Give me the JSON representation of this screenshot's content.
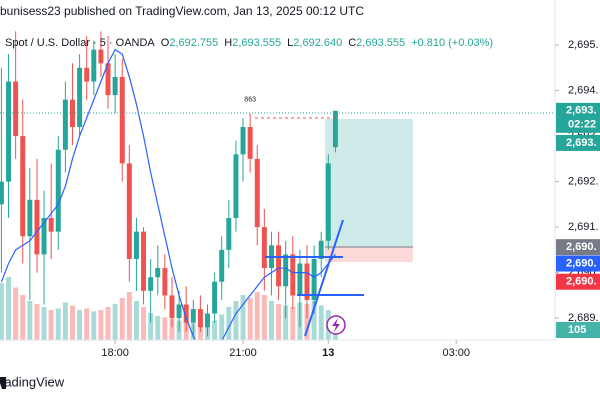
{
  "chart_data": {
    "type": "candlestick",
    "title": "bunisess23 published on TradingView.com, Jan 13, 2025 00:12 UTC",
    "subtitle": "Spot / U.S. Dollar · 5 · OANDA",
    "legend": [
      {
        "label": "O",
        "value": "2,692.755"
      },
      {
        "label": "H",
        "value": "2,693.555"
      },
      {
        "label": "L",
        "value": "2,692.640"
      },
      {
        "label": "C",
        "value": "2,693.555"
      }
    ],
    "change": "+0.810 (+0.03%)",
    "up_color": "#26a69a",
    "down_color": "#ef5350",
    "ma_color": "#2962ff",
    "x": [
      0,
      1,
      2,
      3,
      4,
      5,
      6,
      7,
      8,
      9,
      10,
      11,
      12,
      13,
      14,
      15,
      16,
      17,
      18,
      19,
      20,
      21,
      22,
      23,
      24,
      25,
      26,
      27,
      28,
      29,
      30,
      31,
      32,
      33,
      34,
      35,
      36,
      37,
      38,
      39,
      40,
      41,
      42,
      43,
      44,
      45,
      46,
      47
    ],
    "open": [
      2691.5,
      2692.0,
      2694.2,
      2693.0,
      2690.8,
      2691.6,
      2690.4,
      2691.2,
      2690.9,
      2692.7,
      2693.8,
      2693.2,
      2694.5,
      2694.2,
      2694.9,
      2694.6,
      2693.9,
      2694.3,
      2692.4,
      2690.3,
      2690.9,
      2689.6,
      2689.9,
      2690.1,
      2689.5,
      2689.0,
      2689.3,
      2688.9,
      2689.2,
      2688.8,
      2689.1,
      2689.8,
      2690.5,
      2691.2,
      2692.6,
      2693.2,
      2692.5,
      2691.0,
      2690.1,
      2690.6,
      2689.7,
      2690.4,
      2689.5,
      2690.2,
      2689.4,
      2690.3,
      2690.7,
      2692.755
    ],
    "high": [
      2694.5,
      2694.8,
      2695.3,
      2693.8,
      2692.3,
      2692.5,
      2691.8,
      2692.4,
      2693.0,
      2694.2,
      2694.6,
      2694.8,
      2695.2,
      2695.1,
      2695.3,
      2695.2,
      2694.8,
      2694.7,
      2692.8,
      2691.2,
      2691.0,
      2690.3,
      2690.6,
      2690.4,
      2689.9,
      2689.6,
      2689.7,
      2689.4,
      2689.5,
      2689.3,
      2690.0,
      2690.8,
      2691.6,
      2692.9,
      2693.4,
      2693.5,
      2692.8,
      2691.4,
      2690.9,
      2690.9,
      2690.7,
      2690.8,
      2690.5,
      2690.6,
      2690.6,
      2690.9,
      2692.6,
      2693.555
    ],
    "low": [
      2690.0,
      2691.2,
      2692.5,
      2690.2,
      2689.4,
      2690.0,
      2689.3,
      2690.3,
      2690.5,
      2692.2,
      2692.8,
      2693.0,
      2693.8,
      2693.9,
      2694.3,
      2693.6,
      2693.5,
      2692.0,
      2689.8,
      2689.6,
      2689.3,
      2688.9,
      2689.5,
      2689.2,
      2688.8,
      2688.7,
      2688.7,
      2688.6,
      2688.7,
      2688.6,
      2688.9,
      2689.4,
      2690.1,
      2690.9,
      2692.0,
      2692.2,
      2690.6,
      2689.6,
      2689.5,
      2689.4,
      2689.0,
      2689.2,
      2688.8,
      2689.0,
      2689.1,
      2689.9,
      2690.5,
      2692.64
    ],
    "close": [
      2692.0,
      2694.2,
      2693.0,
      2690.8,
      2691.6,
      2690.4,
      2691.2,
      2690.9,
      2692.7,
      2693.8,
      2693.2,
      2694.5,
      2694.2,
      2694.9,
      2694.6,
      2693.9,
      2694.3,
      2692.4,
      2690.3,
      2690.9,
      2689.6,
      2689.9,
      2690.1,
      2689.5,
      2689.0,
      2689.3,
      2688.9,
      2689.2,
      2688.8,
      2689.1,
      2689.8,
      2690.5,
      2691.2,
      2692.6,
      2693.2,
      2692.5,
      2691.0,
      2690.1,
      2690.6,
      2689.7,
      2690.4,
      2689.5,
      2690.2,
      2689.4,
      2690.3,
      2690.7,
      2692.4,
      2693.555
    ],
    "volume": [
      380,
      420,
      350,
      300,
      260,
      240,
      220,
      200,
      210,
      250,
      230,
      200,
      210,
      190,
      200,
      220,
      240,
      280,
      320,
      260,
      220,
      180,
      160,
      150,
      140,
      130,
      120,
      110,
      100,
      110,
      130,
      170,
      220,
      260,
      300,
      280,
      320,
      300,
      260,
      240,
      230,
      220,
      250,
      240,
      260,
      230,
      200,
      105
    ],
    "volume_label": "105",
    "vlim": [
      0,
      500
    ],
    "ma": [
      2689.8,
      2690.2,
      2690.5,
      2690.6,
      2690.7,
      2690.9,
      2691.1,
      2691.3,
      2691.5,
      2691.9,
      2692.5,
      2693.0,
      2693.4,
      2693.8,
      2694.2,
      2694.6,
      2694.9,
      2694.8,
      2694.3,
      2693.7,
      2693.0,
      2692.2,
      2691.5,
      2690.8,
      2690.1,
      2689.5,
      2689.0,
      2688.6,
      2688.3,
      2688.2,
      2688.3,
      2688.5,
      2688.8,
      2689.1,
      2689.3,
      2689.5,
      2689.7,
      2689.9,
      2690.0,
      2690.1,
      2690.1,
      2690.0,
      2690.0,
      2690.0,
      2689.9,
      2690.0,
      2690.2,
      2690.4
    ],
    "xlim": [
      -0.2,
      77.9
    ],
    "xticks": [
      {
        "value": 16,
        "label": "18:00"
      },
      {
        "value": 34,
        "label": "21:00"
      },
      {
        "value": 46,
        "label": "13"
      },
      {
        "value": 64,
        "label": "03:00"
      }
    ],
    "ylim": [
      2688.52,
      2695.99
    ],
    "yticks": [
      {
        "value": 2689,
        "label": "2,689."
      },
      {
        "value": 2690,
        "label": "2,690."
      },
      {
        "value": 2691,
        "label": "2,691."
      },
      {
        "value": 2692,
        "label": "2,692."
      },
      {
        "value": 2693,
        "label": "2,693."
      },
      {
        "value": 2694,
        "label": "2,694."
      },
      {
        "value": 2695,
        "label": "2,695."
      }
    ],
    "price_labels": [
      {
        "value": 2693.555,
        "label": "2,693.",
        "color": "#26a69a",
        "countdown": "02:22"
      },
      {
        "value": 2692.85,
        "label": "2,693.",
        "color": "#26a69a"
      },
      {
        "value": 2690.56,
        "label": "2,690.",
        "color": "#787b86"
      },
      {
        "value": 2690.2,
        "label": "2,690.",
        "color": "#2962ff"
      },
      {
        "value": 2689.8,
        "label": "2,690.",
        "color": "#f23645"
      }
    ],
    "annotation": {
      "text": "863",
      "x": 35,
      "y": 2693.8
    },
    "footer": "radingView"
  }
}
